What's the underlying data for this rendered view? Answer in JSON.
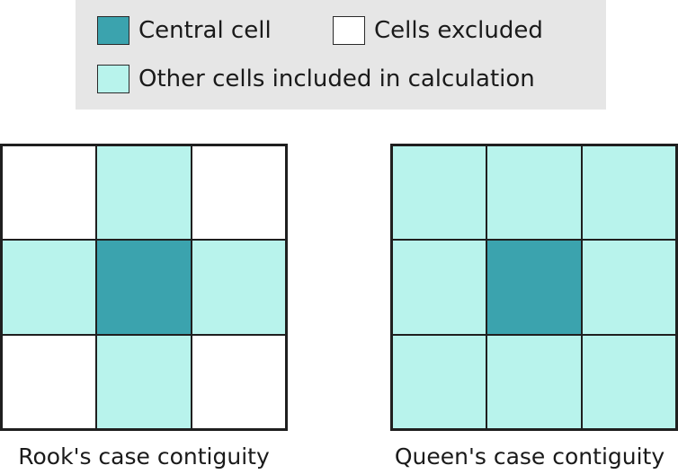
{
  "colors": {
    "central": "#3ba3ae",
    "included": "#b8f3ec",
    "excluded": "#ffffff",
    "legend_bg": "#e6e6e6"
  },
  "legend": {
    "central_label": "Central cell",
    "excluded_label": "Cells excluded",
    "included_label": "Other cells included in calculation"
  },
  "rook": {
    "caption": "Rook's case contiguity",
    "cells": [
      "excluded",
      "included",
      "excluded",
      "included",
      "central",
      "included",
      "excluded",
      "included",
      "excluded"
    ]
  },
  "queen": {
    "caption": "Queen's case contiguity",
    "cells": [
      "included",
      "included",
      "included",
      "included",
      "central",
      "included",
      "included",
      "included",
      "included"
    ]
  }
}
